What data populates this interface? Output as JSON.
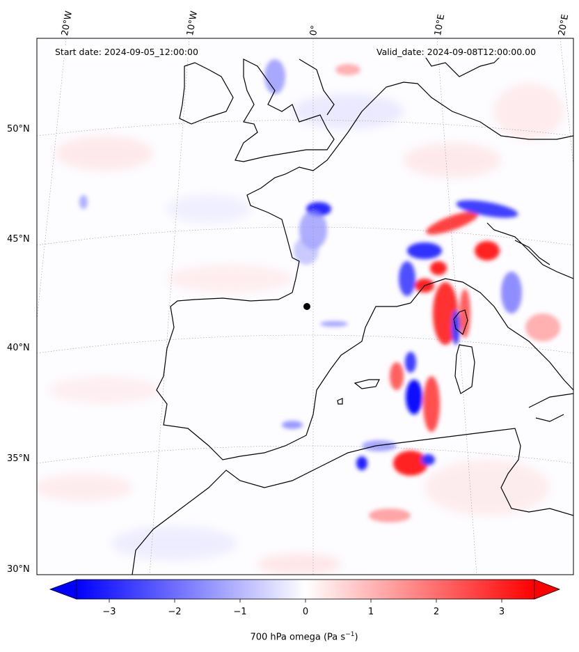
{
  "header": {
    "start_date": "Start date: 2024-09-05_12:00:00",
    "valid_date": "Valid_date: 2024-09-08T12:00:00.00"
  },
  "axes": {
    "lon_labels": [
      "20°W",
      "10°W",
      "0°",
      "10°E",
      "20°E"
    ],
    "lat_labels": [
      "50°N",
      "45°N",
      "40°N",
      "35°N",
      "30°N"
    ]
  },
  "colorbar": {
    "title": "700 hPa omega (Pa s",
    "title_sup": "−1",
    "title_end": ")",
    "ticks": [
      "−3",
      "−2",
      "−1",
      "0",
      "1",
      "2",
      "3"
    ],
    "min": -3.5,
    "max": 3.5,
    "extend": "both",
    "colormap": "bwr",
    "color_low": "#0000ff",
    "color_mid": "#ffffff",
    "color_high": "#ff0000"
  },
  "map": {
    "field": "700 hPa omega",
    "gridlines": "dotted",
    "marker": "black dot"
  }
}
